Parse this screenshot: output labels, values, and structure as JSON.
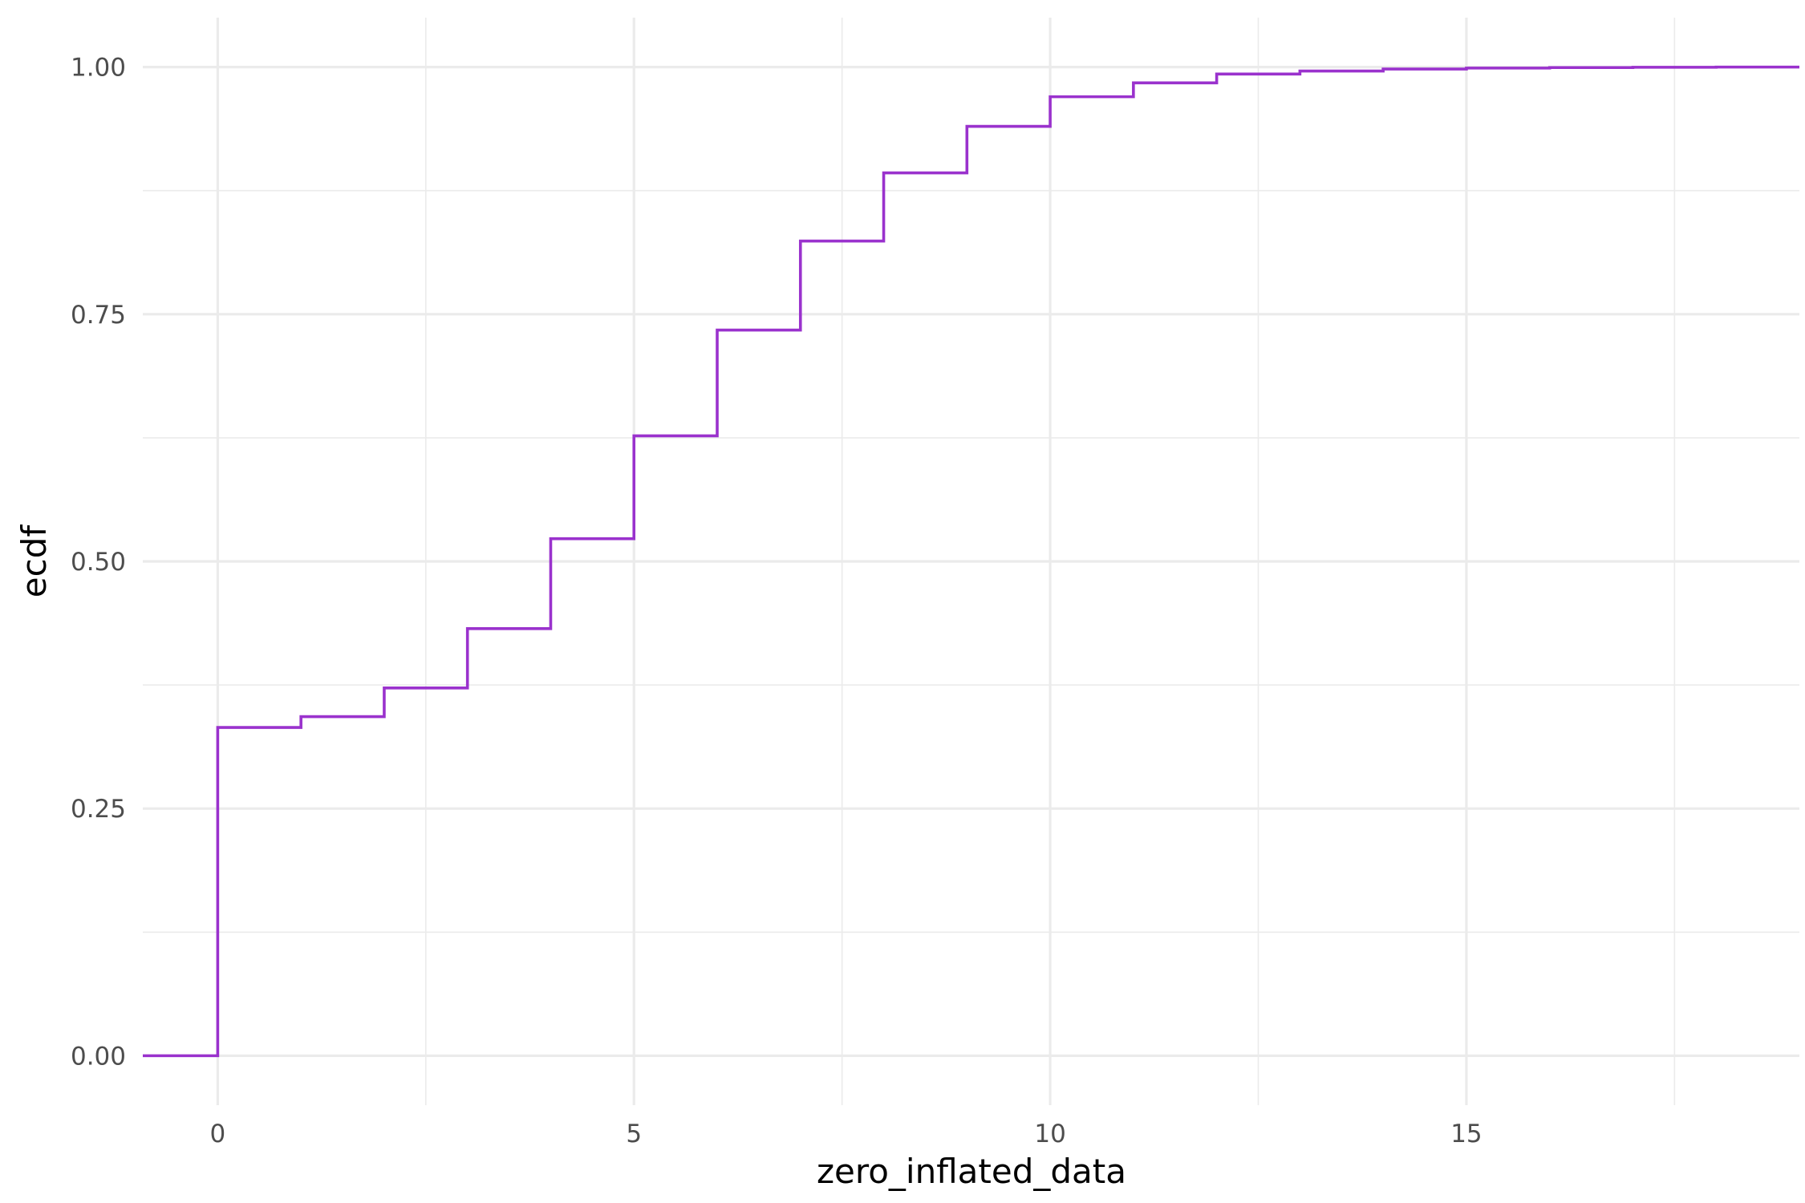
{
  "chart_data": {
    "type": "line",
    "subtype": "step-ecdf",
    "title": "",
    "xlabel": "zero_inflated_data",
    "ylabel": "ecdf",
    "xlim": [
      -0.9,
      19
    ],
    "ylim": [
      -0.05,
      1.05
    ],
    "x_ticks": [
      0,
      5,
      10,
      15
    ],
    "x_tick_labels": [
      "0",
      "5",
      "10",
      "15"
    ],
    "y_ticks": [
      0,
      0.25,
      0.5,
      0.75,
      1
    ],
    "y_tick_labels": [
      "0.00",
      "0.25",
      "0.50",
      "0.75",
      "1.00"
    ],
    "x_minor_ticks": [
      2.5,
      7.5,
      12.5,
      17.5
    ],
    "y_minor_ticks": [
      0.125,
      0.375,
      0.625,
      0.875
    ],
    "grid": true,
    "legend": "none",
    "line_color": "#9A32CD",
    "series": [
      {
        "x": [
          0,
          1,
          2,
          3,
          4,
          5,
          6,
          7,
          8,
          9,
          10,
          11,
          12,
          13,
          14,
          15,
          16,
          17,
          18
        ],
        "y": [
          0.332,
          0.343,
          0.372,
          0.432,
          0.523,
          0.627,
          0.734,
          0.824,
          0.893,
          0.94,
          0.97,
          0.984,
          0.993,
          0.996,
          0.998,
          0.999,
          0.9995,
          0.9998,
          1.0
        ]
      }
    ]
  }
}
